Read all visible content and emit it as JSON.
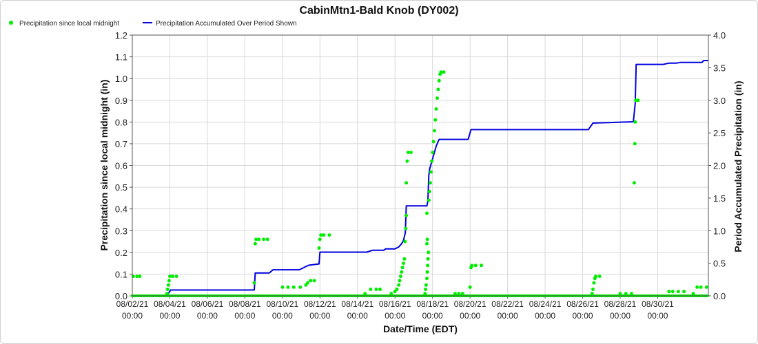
{
  "chart_data": {
    "type": "line",
    "title": "CabinMtn1-Bald Knob (DY002)",
    "xlabel": "Date/Time (EDT)",
    "ylabel_left": "Precipitation since local midnight (in)",
    "ylabel_right": "Period Accumulated Precipitation (in)",
    "ylim_left": [
      0,
      1.2
    ],
    "ylim_right": [
      0,
      4.0
    ],
    "yticks_left": [
      "0.0",
      "0.1",
      "0.2",
      "0.3",
      "0.4",
      "0.5",
      "0.6",
      "0.7",
      "0.8",
      "0.9",
      "1.0",
      "1.1",
      "1.2"
    ],
    "yticks_right": [
      "0.0",
      "0.5",
      "1.0",
      "1.5",
      "2.0",
      "2.5",
      "3.0",
      "3.5",
      "4.0"
    ],
    "xlim": [
      0,
      30.7
    ],
    "xticks": [
      {
        "x": 0,
        "date": "08/02/21",
        "time": "00:00"
      },
      {
        "x": 2,
        "date": "08/04/21",
        "time": "00:00"
      },
      {
        "x": 4,
        "date": "08/06/21",
        "time": "00:00"
      },
      {
        "x": 6,
        "date": "08/08/21",
        "time": "00:00"
      },
      {
        "x": 8,
        "date": "08/10/21",
        "time": "00:00"
      },
      {
        "x": 10,
        "date": "08/12/21",
        "time": "00:00"
      },
      {
        "x": 12,
        "date": "08/14/21",
        "time": "00:00"
      },
      {
        "x": 14,
        "date": "08/16/21",
        "time": "00:00"
      },
      {
        "x": 16,
        "date": "08/18/21",
        "time": "00:00"
      },
      {
        "x": 18,
        "date": "08/20/21",
        "time": "00:00"
      },
      {
        "x": 20,
        "date": "08/22/21",
        "time": "00:00"
      },
      {
        "x": 22,
        "date": "08/24/21",
        "time": "00:00"
      },
      {
        "x": 24,
        "date": "08/26/21",
        "time": "00:00"
      },
      {
        "x": 26,
        "date": "08/28/21",
        "time": "00:00"
      },
      {
        "x": 28,
        "date": "08/30/21",
        "time": "00:00"
      }
    ],
    "grid": true,
    "legend_position": "top-left",
    "series": [
      {
        "name": "Precipitation since local midnight",
        "style": "points",
        "color": "#00ee00",
        "axis": "left",
        "points": [
          [
            0.05,
            0.09
          ],
          [
            0.25,
            0.09
          ],
          [
            0.4,
            0.09
          ],
          [
            1.85,
            0.01
          ],
          [
            1.88,
            0.03
          ],
          [
            1.92,
            0.05
          ],
          [
            1.96,
            0.07
          ],
          [
            2.0,
            0.09
          ],
          [
            2.15,
            0.09
          ],
          [
            2.35,
            0.09
          ],
          [
            6.5,
            0.06
          ],
          [
            6.55,
            0.24
          ],
          [
            6.6,
            0.26
          ],
          [
            6.75,
            0.26
          ],
          [
            7.0,
            0.26
          ],
          [
            7.2,
            0.26
          ],
          [
            8.0,
            0.04
          ],
          [
            8.3,
            0.04
          ],
          [
            8.6,
            0.04
          ],
          [
            8.95,
            0.04
          ],
          [
            9.25,
            0.05
          ],
          [
            9.35,
            0.06
          ],
          [
            9.5,
            0.07
          ],
          [
            9.7,
            0.07
          ],
          [
            9.95,
            0.22
          ],
          [
            10.0,
            0.26
          ],
          [
            10.05,
            0.28
          ],
          [
            10.2,
            0.28
          ],
          [
            10.5,
            0.28
          ],
          [
            12.4,
            0.01
          ],
          [
            12.7,
            0.03
          ],
          [
            13.0,
            0.03
          ],
          [
            13.2,
            0.03
          ],
          [
            13.8,
            0.01
          ],
          [
            14.0,
            0.02
          ],
          [
            14.1,
            0.03
          ],
          [
            14.2,
            0.05
          ],
          [
            14.25,
            0.07
          ],
          [
            14.3,
            0.09
          ],
          [
            14.35,
            0.11
          ],
          [
            14.4,
            0.13
          ],
          [
            14.45,
            0.15
          ],
          [
            14.5,
            0.17
          ],
          [
            14.53,
            0.25
          ],
          [
            14.57,
            0.31
          ],
          [
            14.6,
            0.37
          ],
          [
            14.6,
            0.52
          ],
          [
            14.65,
            0.62
          ],
          [
            14.7,
            0.66
          ],
          [
            14.85,
            0.66
          ],
          [
            15.6,
            0.01
          ],
          [
            15.63,
            0.03
          ],
          [
            15.66,
            0.05
          ],
          [
            15.7,
            0.08
          ],
          [
            15.72,
            0.11
          ],
          [
            15.74,
            0.14
          ],
          [
            15.76,
            0.17
          ],
          [
            15.78,
            0.2
          ],
          [
            15.7,
            0.24
          ],
          [
            15.72,
            0.26
          ],
          [
            15.7,
            0.38
          ],
          [
            15.8,
            0.44
          ],
          [
            15.84,
            0.48
          ],
          [
            15.88,
            0.52
          ],
          [
            15.92,
            0.57
          ],
          [
            15.96,
            0.62
          ],
          [
            16.0,
            0.66
          ],
          [
            16.05,
            0.71
          ],
          [
            16.1,
            0.76
          ],
          [
            16.15,
            0.81
          ],
          [
            16.2,
            0.86
          ],
          [
            16.25,
            0.91
          ],
          [
            16.3,
            0.95
          ],
          [
            16.35,
            0.99
          ],
          [
            16.4,
            1.02
          ],
          [
            16.45,
            1.03
          ],
          [
            16.6,
            1.03
          ],
          [
            17.2,
            0.01
          ],
          [
            17.4,
            0.01
          ],
          [
            17.6,
            0.01
          ],
          [
            18.0,
            0.04
          ],
          [
            18.05,
            0.13
          ],
          [
            18.1,
            0.14
          ],
          [
            18.3,
            0.14
          ],
          [
            18.6,
            0.14
          ],
          [
            24.5,
            0.01
          ],
          [
            24.55,
            0.03
          ],
          [
            24.6,
            0.06
          ],
          [
            24.65,
            0.08
          ],
          [
            24.7,
            0.09
          ],
          [
            24.9,
            0.09
          ],
          [
            26.0,
            0.01
          ],
          [
            26.3,
            0.01
          ],
          [
            26.6,
            0.01
          ],
          [
            26.75,
            0.52
          ],
          [
            26.78,
            0.7
          ],
          [
            26.8,
            0.8
          ],
          [
            26.83,
            0.9
          ],
          [
            26.95,
            0.9
          ],
          [
            28.6,
            0.02
          ],
          [
            28.8,
            0.02
          ],
          [
            29.1,
            0.02
          ],
          [
            29.4,
            0.02
          ],
          [
            29.9,
            0.01
          ],
          [
            30.1,
            0.04
          ],
          [
            30.3,
            0.04
          ],
          [
            30.6,
            0.04
          ]
        ]
      },
      {
        "name": "Precipitation Accumulated Over Period Shown",
        "style": "line",
        "color": "#0000dd",
        "axis": "right",
        "points": [
          [
            0,
            0
          ],
          [
            1.85,
            0
          ],
          [
            1.9,
            0.03
          ],
          [
            2.05,
            0.09
          ],
          [
            6.5,
            0.09
          ],
          [
            6.55,
            0.35
          ],
          [
            7.3,
            0.35
          ],
          [
            7.5,
            0.4
          ],
          [
            8.9,
            0.4
          ],
          [
            9.25,
            0.45
          ],
          [
            9.4,
            0.47
          ],
          [
            9.95,
            0.49
          ],
          [
            10.0,
            0.67
          ],
          [
            12.5,
            0.67
          ],
          [
            12.8,
            0.7
          ],
          [
            13.4,
            0.7
          ],
          [
            13.5,
            0.72
          ],
          [
            14.0,
            0.72
          ],
          [
            14.2,
            0.75
          ],
          [
            14.35,
            0.8
          ],
          [
            14.45,
            0.85
          ],
          [
            14.55,
            0.97
          ],
          [
            14.6,
            1.38
          ],
          [
            15.7,
            1.38
          ],
          [
            15.75,
            1.45
          ],
          [
            15.8,
            1.85
          ],
          [
            15.85,
            1.95
          ],
          [
            15.9,
            2.0
          ],
          [
            16.0,
            2.1
          ],
          [
            16.1,
            2.2
          ],
          [
            16.2,
            2.3
          ],
          [
            16.35,
            2.4
          ],
          [
            17.9,
            2.4
          ],
          [
            18.05,
            2.55
          ],
          [
            24.3,
            2.55
          ],
          [
            24.55,
            2.65
          ],
          [
            26.7,
            2.67
          ],
          [
            26.8,
            2.95
          ],
          [
            26.85,
            3.55
          ],
          [
            28.3,
            3.55
          ],
          [
            28.6,
            3.57
          ],
          [
            29.0,
            3.57
          ],
          [
            29.2,
            3.58
          ],
          [
            30.35,
            3.58
          ],
          [
            30.45,
            3.61
          ],
          [
            30.7,
            3.61
          ]
        ]
      }
    ]
  }
}
